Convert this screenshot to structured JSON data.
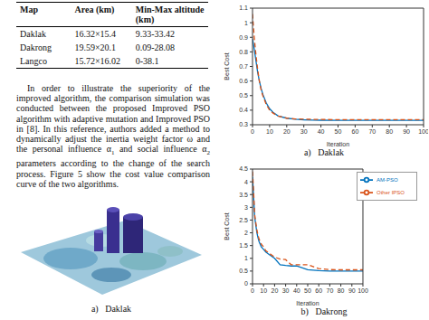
{
  "table": {
    "header": [
      "Map",
      "Area (km)",
      "Min-Max altitude (km)"
    ],
    "rows": [
      [
        "Daklak",
        "16.32×15.4",
        "9.33-33.42"
      ],
      [
        "Dakrong",
        "19.59×20.1",
        "0.09-28.08"
      ],
      [
        "Langco",
        "15.72×16.02",
        "0-38.1"
      ]
    ]
  },
  "paragraph": [
    {
      "text": "In order to illustrate the superiority of the improved algorithm, the comparison simulation was conducted between the proposed Improved PSO algorithm with adaptive mutation and Improved PSO in [8]. In this reference, authors added a method to dynamically adjust the inertia weight factor ω and the personal influence α"
    },
    {
      "text": "1",
      "sub": true
    },
    {
      "text": " and social influence α"
    },
    {
      "text": "2",
      "sub": true
    },
    {
      "text": " parameters according to the change of the search process. Figure 5 show the cost value comparison curve of the two algorithms."
    }
  ],
  "image_caption": "a)   Daklak",
  "chart_data": [
    {
      "type": "line",
      "caption": "a)   Daklak",
      "xlabel": "Iteration",
      "ylabel": "Best Cost",
      "grid": false,
      "x": [
        0,
        1,
        2,
        3,
        4,
        5,
        6,
        8,
        10,
        12,
        15,
        20,
        25,
        30,
        35,
        40,
        50,
        60,
        70,
        80,
        90,
        100
      ],
      "xlim": [
        0,
        100
      ],
      "xticks": [
        0,
        10,
        20,
        30,
        40,
        50,
        60,
        70,
        80,
        90,
        100
      ],
      "ylim": [
        0.3,
        1.1
      ],
      "yticks": [
        0.3,
        0.4,
        0.5,
        0.6,
        0.7,
        0.8,
        0.9,
        1,
        1.1
      ],
      "series": [
        {
          "color": "#0072bd",
          "line_style": "solid",
          "values": [
            0.89,
            0.82,
            0.74,
            0.66,
            0.6,
            0.55,
            0.51,
            0.45,
            0.41,
            0.385,
            0.36,
            0.345,
            0.338,
            0.334,
            0.332,
            0.331,
            0.33,
            0.33,
            0.33,
            0.33,
            0.33,
            0.33
          ]
        },
        {
          "color": "#d95319",
          "line_style": "dashed",
          "values": [
            1.06,
            0.9,
            0.78,
            0.68,
            0.6,
            0.54,
            0.5,
            0.44,
            0.4,
            0.38,
            0.36,
            0.345,
            0.34,
            0.338,
            0.337,
            0.336,
            0.335,
            0.335,
            0.335,
            0.335,
            0.335,
            0.335
          ]
        }
      ]
    },
    {
      "type": "line",
      "caption": "b)   Dakrong",
      "xlabel": "Iteration",
      "ylabel": "Best Cost",
      "grid": false,
      "legend": "northeast",
      "x": [
        0,
        1,
        2,
        3,
        4,
        5,
        6,
        8,
        10,
        12,
        15,
        20,
        25,
        30,
        35,
        40,
        50,
        60,
        70,
        80,
        90,
        100
      ],
      "xlim": [
        0,
        100
      ],
      "xticks": [
        0,
        10,
        20,
        30,
        40,
        50,
        60,
        70,
        80,
        90,
        100
      ],
      "ylim": [
        0,
        4.5
      ],
      "yticks": [
        0,
        0.5,
        1,
        1.5,
        2,
        2.5,
        3,
        3.5,
        4,
        4.5
      ],
      "series": [
        {
          "name": "AM-PSO",
          "color": "#0072bd",
          "line_style": "solid",
          "values": [
            4.2,
            3.4,
            2.6,
            2.3,
            2.0,
            1.8,
            1.65,
            1.45,
            1.35,
            1.25,
            1.15,
            1.0,
            0.75,
            0.72,
            0.7,
            0.7,
            0.55,
            0.52,
            0.5,
            0.5,
            0.5,
            0.5
          ]
        },
        {
          "name": "Other IPSO",
          "color": "#d95319",
          "line_style": "dashed",
          "values": [
            4.4,
            3.6,
            2.7,
            2.4,
            2.1,
            1.9,
            1.75,
            1.55,
            1.45,
            1.3,
            1.2,
            1.05,
            0.97,
            0.95,
            0.75,
            0.75,
            0.75,
            0.6,
            0.56,
            0.55,
            0.55,
            0.55
          ]
        }
      ]
    }
  ]
}
